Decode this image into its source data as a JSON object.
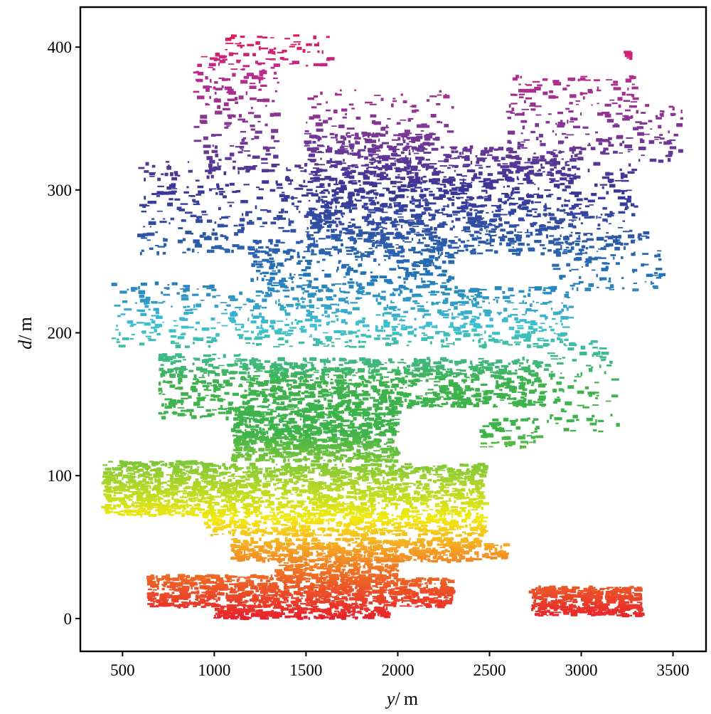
{
  "chart_data": {
    "type": "scatter",
    "title": "",
    "xlabel": {
      "var": "y",
      "unit": "/ m"
    },
    "ylabel": {
      "var": "d",
      "unit": "/ m"
    },
    "xlim": [
      270,
      3680
    ],
    "ylim": [
      -23,
      428
    ],
    "xticks": [
      500,
      1000,
      1500,
      2000,
      2500,
      3000,
      3500
    ],
    "yticks": [
      0,
      100,
      200,
      300,
      400
    ],
    "grid": false,
    "legend": "none",
    "color_scale": {
      "description": "color encodes depth d",
      "stops": [
        {
          "d": 0,
          "color": "#e8212b"
        },
        {
          "d": 30,
          "color": "#ee6a25"
        },
        {
          "d": 50,
          "color": "#f5a623"
        },
        {
          "d": 70,
          "color": "#f2ea0f"
        },
        {
          "d": 95,
          "color": "#a9d42a"
        },
        {
          "d": 130,
          "color": "#3db34a"
        },
        {
          "d": 165,
          "color": "#3fb24d"
        },
        {
          "d": 205,
          "color": "#3ec1d2"
        },
        {
          "d": 240,
          "color": "#2374b8"
        },
        {
          "d": 300,
          "color": "#3a3596"
        },
        {
          "d": 340,
          "color": "#7a3796"
        },
        {
          "d": 385,
          "color": "#c02a8c"
        },
        {
          "d": 410,
          "color": "#e5194d"
        }
      ]
    },
    "clusters": [
      {
        "x": [
          640,
          1000
        ],
        "d": [
          8,
          30
        ],
        "n": 260
      },
      {
        "x": [
          1000,
          1950
        ],
        "d": [
          0,
          30
        ],
        "n": 900
      },
      {
        "x": [
          1950,
          2300
        ],
        "d": [
          8,
          28
        ],
        "n": 220
      },
      {
        "x": [
          2730,
          3330
        ],
        "d": [
          2,
          22
        ],
        "n": 420
      },
      {
        "x": [
          1100,
          2450
        ],
        "d": [
          40,
          56
        ],
        "n": 600
      },
      {
        "x": [
          1350,
          2000
        ],
        "d": [
          28,
          42
        ],
        "n": 220
      },
      {
        "x": [
          2470,
          2600
        ],
        "d": [
          42,
          52
        ],
        "n": 40
      },
      {
        "x": [
          400,
          950
        ],
        "d": [
          72,
          110
        ],
        "n": 600
      },
      {
        "x": [
          950,
          2480
        ],
        "d": [
          58,
          108
        ],
        "n": 1600
      },
      {
        "x": [
          1100,
          2000
        ],
        "d": [
          110,
          148
        ],
        "n": 900
      },
      {
        "x": [
          2450,
          2780
        ],
        "d": [
          120,
          140
        ],
        "n": 60
      },
      {
        "x": [
          700,
          1150
        ],
        "d": [
          140,
          185
        ],
        "n": 200
      },
      {
        "x": [
          1150,
          2800
        ],
        "d": [
          148,
          182
        ],
        "n": 1000
      },
      {
        "x": [
          2800,
          3200
        ],
        "d": [
          130,
          195
        ],
        "n": 90
      },
      {
        "x": [
          450,
          1100
        ],
        "d": [
          190,
          235
        ],
        "n": 140
      },
      {
        "x": [
          1100,
          2950
        ],
        "d": [
          190,
          232
        ],
        "n": 600
      },
      {
        "x": [
          1200,
          2300
        ],
        "d": [
          232,
          260
        ],
        "n": 240
      },
      {
        "x": [
          2850,
          3450
        ],
        "d": [
          230,
          270
        ],
        "n": 90
      },
      {
        "x": [
          600,
          1500
        ],
        "d": [
          255,
          320
        ],
        "n": 260
      },
      {
        "x": [
          1500,
          2200
        ],
        "d": [
          255,
          340
        ],
        "n": 800
      },
      {
        "x": [
          2200,
          3000
        ],
        "d": [
          255,
          330
        ],
        "n": 650
      },
      {
        "x": [
          3000,
          3300
        ],
        "d": [
          250,
          320
        ],
        "n": 100
      },
      {
        "x": [
          900,
          1350
        ],
        "d": [
          315,
          395
        ],
        "n": 160
      },
      {
        "x": [
          1500,
          2300
        ],
        "d": [
          335,
          370
        ],
        "n": 90
      },
      {
        "x": [
          2600,
          3300
        ],
        "d": [
          325,
          380
        ],
        "n": 180
      },
      {
        "x": [
          3300,
          3550
        ],
        "d": [
          320,
          360
        ],
        "n": 50
      },
      {
        "x": [
          1050,
          1650
        ],
        "d": [
          385,
          410
        ],
        "n": 60
      },
      {
        "x": [
          3250,
          3290
        ],
        "d": [
          392,
          398
        ],
        "n": 6
      }
    ]
  }
}
